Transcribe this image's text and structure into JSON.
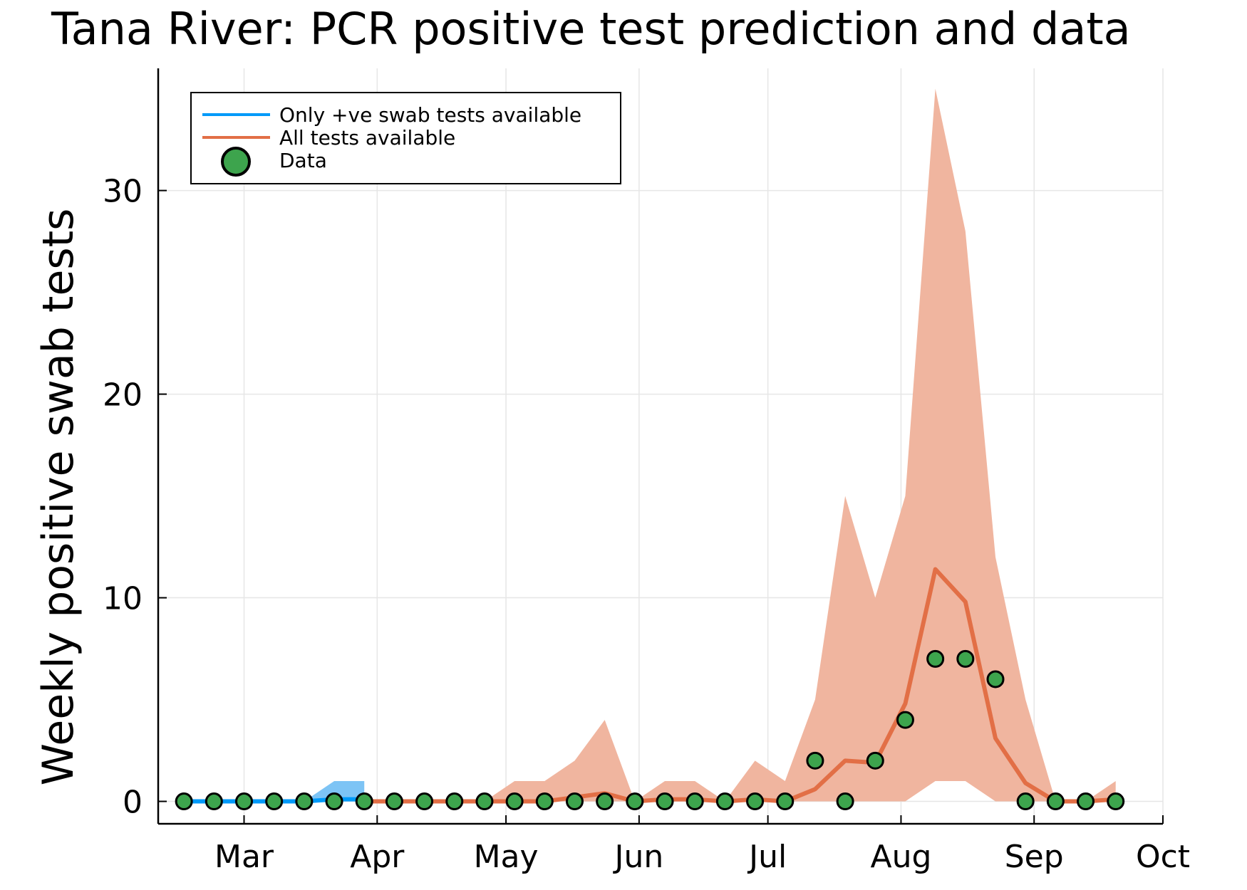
{
  "chart_data": {
    "type": "line",
    "title": "Tana River: PCR positive test prediction and data",
    "xlabel": "",
    "ylabel": "Weekly positive swab tests",
    "x_axis": {
      "type": "date",
      "min": "2020-02-10",
      "max": "2020-10-01",
      "ticks": [
        {
          "date": "2020-03-01",
          "label": "Mar"
        },
        {
          "date": "2020-04-01",
          "label": "Apr"
        },
        {
          "date": "2020-05-01",
          "label": "May"
        },
        {
          "date": "2020-06-01",
          "label": "Jun"
        },
        {
          "date": "2020-07-01",
          "label": "Jul"
        },
        {
          "date": "2020-08-01",
          "label": "Aug"
        },
        {
          "date": "2020-09-01",
          "label": "Sep"
        },
        {
          "date": "2020-10-01",
          "label": "Oct"
        }
      ]
    },
    "y_axis": {
      "min": -1.1,
      "max": 36,
      "ticks": [
        0,
        10,
        20,
        30
      ]
    },
    "grid": true,
    "legend": {
      "placement": "top-left"
    },
    "colors": {
      "blue": "#009af9",
      "blue_band": "#7dc4f5",
      "orange": "#e26f46",
      "orange_band": "#f0b59f",
      "data_fill": "#3da44d",
      "data_stroke": "#000000"
    },
    "series": [
      {
        "name": "Only +ve swab tests available",
        "kind": "line",
        "color": "blue",
        "x": [
          "2020-02-16",
          "2020-02-23",
          "2020-03-01",
          "2020-03-08",
          "2020-03-15",
          "2020-03-22",
          "2020-03-29"
        ],
        "y": [
          0,
          0,
          0,
          0,
          0,
          0.1,
          0.1
        ],
        "band_lower": [
          0,
          0,
          0,
          0,
          0,
          0,
          0
        ],
        "band_upper": [
          0,
          0,
          0,
          0,
          0,
          1,
          1
        ]
      },
      {
        "name": "All tests available",
        "kind": "line",
        "color": "orange",
        "x": [
          "2020-03-29",
          "2020-04-05",
          "2020-04-12",
          "2020-04-19",
          "2020-04-26",
          "2020-05-03",
          "2020-05-10",
          "2020-05-17",
          "2020-05-24",
          "2020-05-31",
          "2020-06-07",
          "2020-06-14",
          "2020-06-21",
          "2020-06-28",
          "2020-07-05",
          "2020-07-12",
          "2020-07-19",
          "2020-07-26",
          "2020-08-02",
          "2020-08-09",
          "2020-08-16",
          "2020-08-23",
          "2020-08-30",
          "2020-09-06",
          "2020-09-13",
          "2020-09-20"
        ],
        "y": [
          0,
          0,
          0,
          0,
          0,
          0,
          0,
          0.2,
          0.4,
          0,
          0.1,
          0.1,
          0,
          0.1,
          0,
          0.6,
          2.0,
          1.9,
          4.8,
          11.4,
          9.8,
          3.1,
          0.9,
          0,
          0,
          0.1
        ],
        "band_lower": [
          0,
          0,
          0,
          0,
          0,
          0,
          0,
          0,
          0,
          0,
          0,
          0,
          0,
          0,
          0,
          0,
          0,
          0,
          0,
          1,
          1,
          0,
          0,
          0,
          0,
          0
        ],
        "band_upper": [
          0,
          0,
          0,
          0,
          0,
          1,
          1,
          2,
          4,
          0,
          1,
          1,
          0,
          2,
          1,
          5,
          15,
          10,
          15,
          35,
          28,
          12,
          5,
          0,
          0,
          1
        ]
      },
      {
        "name": "Data",
        "kind": "scatter",
        "x": [
          "2020-02-16",
          "2020-02-23",
          "2020-03-01",
          "2020-03-08",
          "2020-03-15",
          "2020-03-22",
          "2020-03-29",
          "2020-04-05",
          "2020-04-12",
          "2020-04-19",
          "2020-04-26",
          "2020-05-03",
          "2020-05-10",
          "2020-05-17",
          "2020-05-24",
          "2020-05-31",
          "2020-06-07",
          "2020-06-14",
          "2020-06-21",
          "2020-06-28",
          "2020-07-05",
          "2020-07-12",
          "2020-07-19",
          "2020-07-26",
          "2020-08-02",
          "2020-08-09",
          "2020-08-16",
          "2020-08-23",
          "2020-08-30",
          "2020-09-06",
          "2020-09-13",
          "2020-09-20"
        ],
        "y": [
          0,
          0,
          0,
          0,
          0,
          0,
          0,
          0,
          0,
          0,
          0,
          0,
          0,
          0,
          0,
          0,
          0,
          0,
          0,
          0,
          0,
          2,
          0,
          2,
          4,
          7,
          7,
          6,
          0,
          0,
          0,
          0
        ]
      }
    ]
  }
}
